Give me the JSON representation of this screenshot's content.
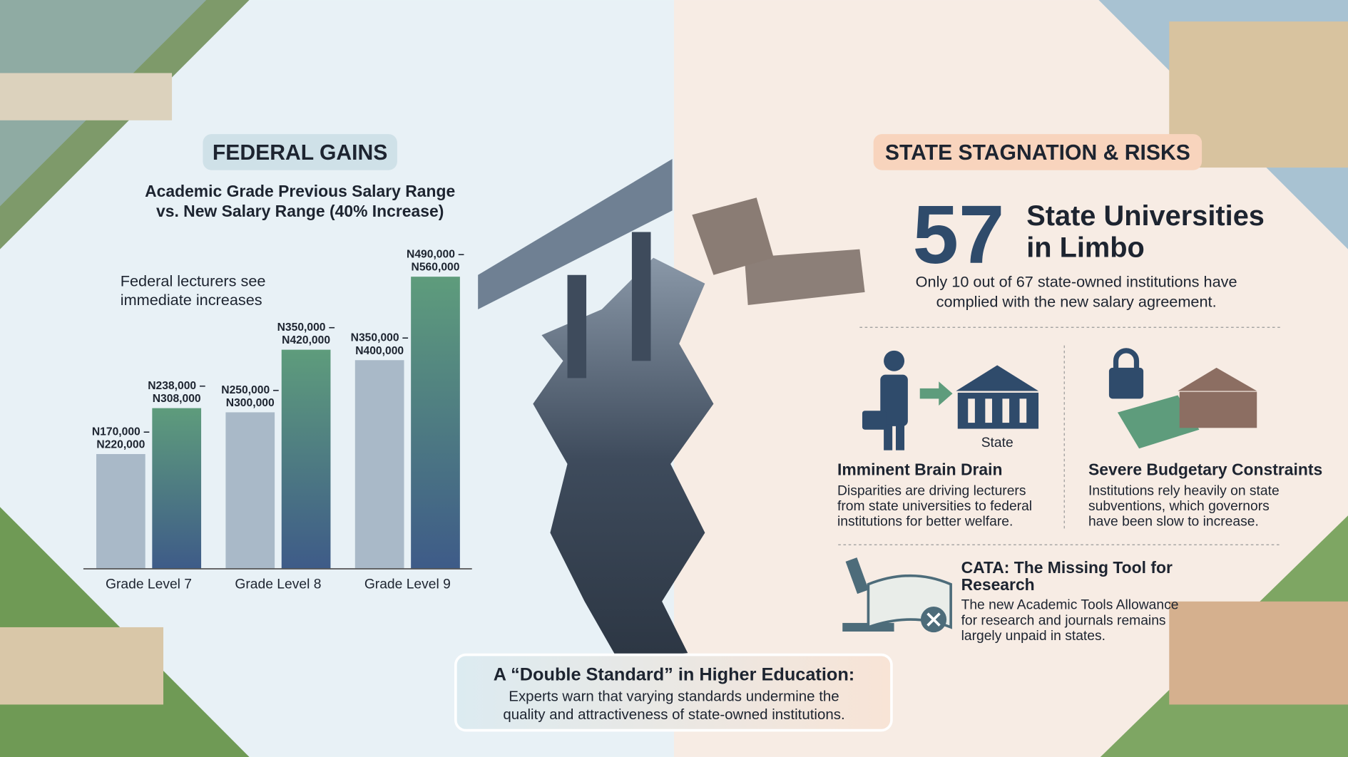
{
  "chart_data": {
    "type": "bar",
    "badge": "FEDERAL GAINS",
    "title": [
      "Academic Grade Previous Salary Range",
      "vs. New Salary Range (40% Increase)"
    ],
    "annotation": [
      "Federal lecturers see",
      "immediate increases"
    ],
    "categories": [
      "Grade Level 7",
      "Grade Level 8",
      "Grade Level 9"
    ],
    "series": [
      {
        "color": "#a9b9c8",
        "values": [
          220000,
          300000,
          400000
        ],
        "value_labels": [
          [
            "N170,000 –",
            "N220,000"
          ],
          [
            "N250,000 –",
            "N300,000"
          ],
          [
            "N350,000 –",
            "N400,000"
          ]
        ]
      },
      {
        "color": "#5e9c7c",
        "values": [
          308000,
          420000,
          560000
        ],
        "value_labels": [
          [
            "N238,000 –",
            "N308,000"
          ],
          [
            "N350,000 –",
            "N420,000"
          ],
          [
            "N490,000 –",
            "N560,000"
          ]
        ]
      }
    ]
  },
  "state": {
    "badge": "STATE STAGNATION & RISKS",
    "big_number": "57",
    "headline": [
      "State Universities",
      "in Limbo"
    ],
    "summary": [
      "Only 10 out of 67 state-owned institutions have",
      "complied with the new salary agreement."
    ],
    "cards": [
      {
        "icon_label": "State",
        "title": [
          "Imminent Brain Drain"
        ],
        "body": [
          "Disparities are driving lecturers",
          "from state universities to federal",
          "institutions for better welfare."
        ]
      },
      {
        "title": [
          "Severe Budgetary Constraints"
        ],
        "body": [
          "Institutions rely heavily on state",
          "subventions, which governors",
          "have been slow to increase."
        ]
      },
      {
        "title": [
          "CATA: The Missing Tool for",
          "Research"
        ],
        "body": [
          "The new Academic Tools Allowance",
          "for research and journals remains",
          "largely unpaid in states."
        ]
      }
    ]
  },
  "footer": {
    "title": "A “Double Standard” in Higher Education:",
    "body": [
      "Experts warn that varying standards undermine the",
      "quality and attractiveness of state-owned institutions."
    ]
  }
}
